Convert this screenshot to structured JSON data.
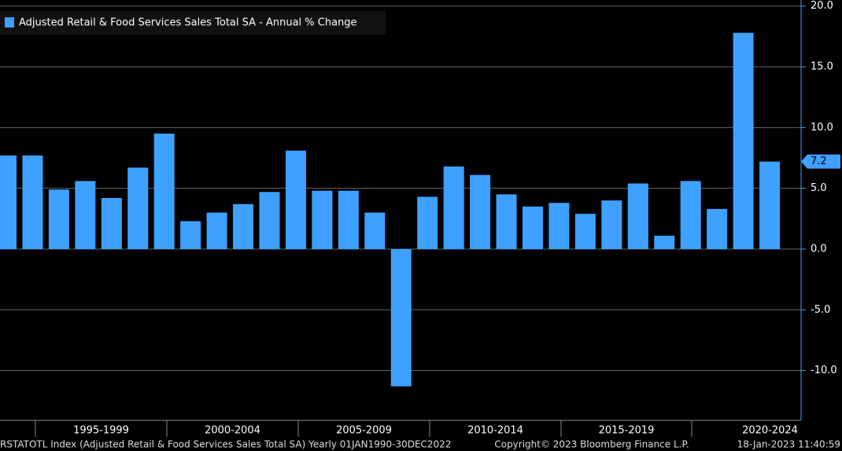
{
  "chart_data": {
    "type": "bar",
    "series": [
      {
        "name": "Adjusted Retail & Food Services Sales Total SA - Annual % Change",
        "color": "#3ea1ff",
        "values": [
          7.7,
          7.7,
          4.9,
          5.6,
          4.2,
          6.7,
          9.5,
          2.3,
          3.0,
          3.7,
          4.7,
          8.1,
          4.8,
          4.8,
          3.0,
          -11.3,
          4.3,
          6.8,
          6.1,
          4.5,
          3.5,
          3.8,
          2.9,
          4.0,
          5.4,
          1.1,
          5.6,
          3.3,
          17.8,
          7.2
        ]
      }
    ],
    "categories": [
      null,
      null,
      null,
      null,
      null,
      null,
      null,
      null,
      null,
      null,
      null,
      null,
      null,
      null,
      null,
      null,
      null,
      null,
      null,
      null,
      null,
      null,
      null,
      null,
      null,
      null,
      null,
      null,
      null,
      null
    ],
    "xgroups": [
      "1995-1999",
      "2000-2004",
      "2005-2009",
      "2010-2014",
      "2015-2019",
      "2020-2024"
    ],
    "ylim": [
      -14.1,
      20.5
    ],
    "yticks": [
      {
        "value": -10,
        "label": "-10.0"
      },
      {
        "value": -5,
        "label": "-5.0"
      },
      {
        "value": 0,
        "label": "0.0"
      },
      {
        "value": 5,
        "label": "5.0"
      },
      {
        "value": 10,
        "label": "10.0"
      },
      {
        "value": 15,
        "label": "15.0"
      },
      {
        "value": 20,
        "label": "20.0"
      }
    ],
    "grid": true,
    "footer": {
      "left": "RSTATOTL Index (Adjusted Retail & Food Services Sales Total SA)  Yearly 01JAN1990-30DEC2022",
      "center": "Copyright© 2023 Bloomberg Finance L.P.",
      "right": "18-Jan-2023 11:40:59"
    }
  }
}
